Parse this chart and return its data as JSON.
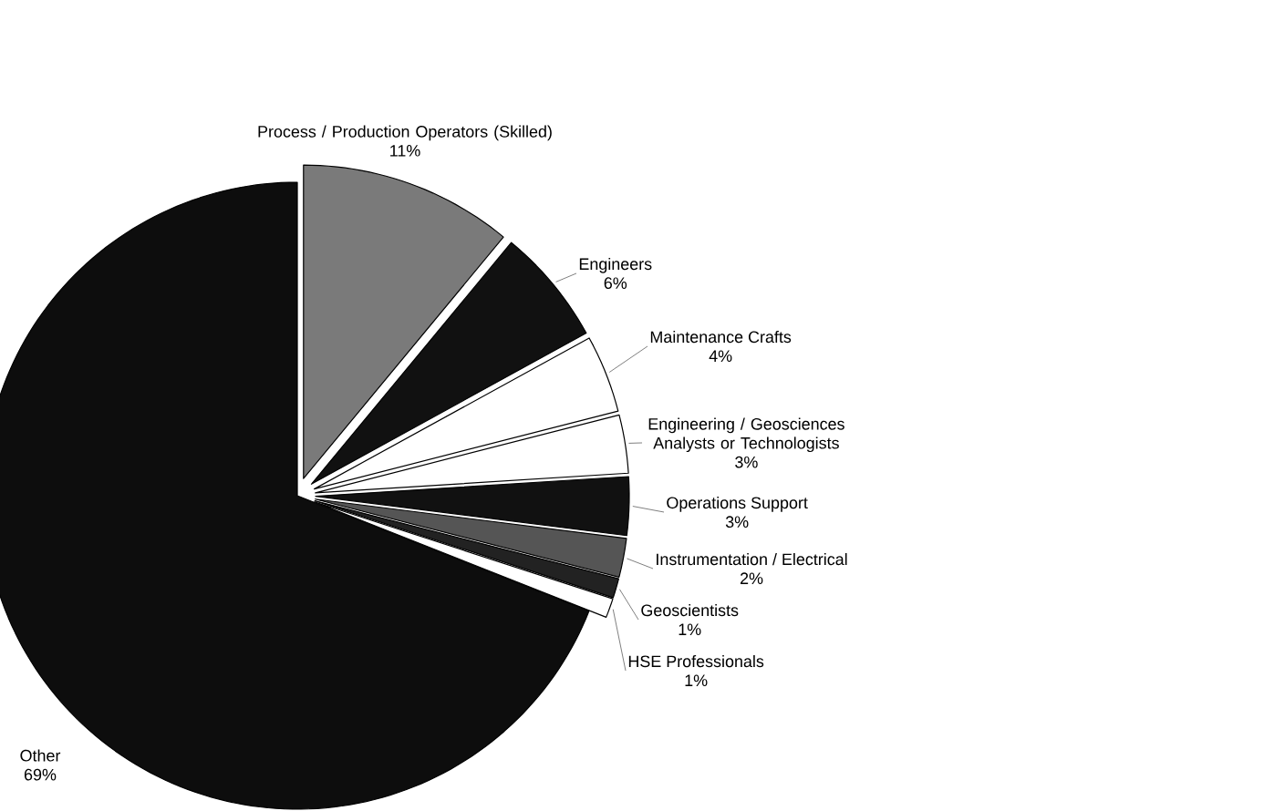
{
  "chart_data": {
    "type": "pie",
    "categories": [
      "Process / Production Operators (Skilled)",
      "Engineers",
      "Maintenance Crafts",
      "Engineering / Geosciences Analysts or Technologists",
      "Operations Support",
      "Instrumentation / Electrical",
      "Geoscientists",
      "HSE Professionals",
      "Other"
    ],
    "values": [
      11,
      6,
      4,
      3,
      3,
      2,
      1,
      1,
      69
    ],
    "value_labels": [
      "11%",
      "6%",
      "4%",
      "3%",
      "3%",
      "2%",
      "1%",
      "1%",
      "69%"
    ],
    "colors": [
      "#7a7a7a",
      "#111111",
      "#ffffff",
      "#ffffff",
      "#111111",
      "#555555",
      "#222222",
      "#ffffff",
      "#0d0d0d"
    ]
  }
}
